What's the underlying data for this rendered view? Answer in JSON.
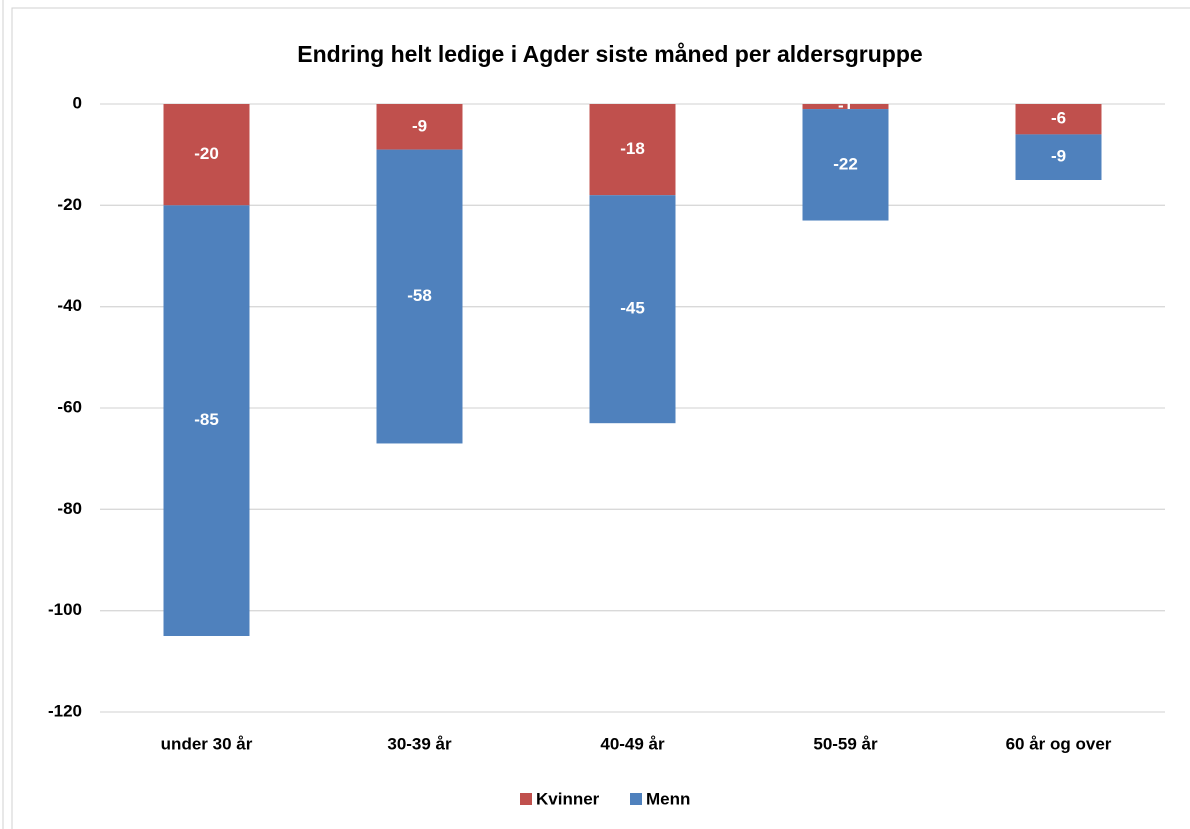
{
  "chart_data": {
    "type": "stacked_bar",
    "title": "Endring helt ledige i Agder siste måned per aldersgruppe",
    "categories": [
      "under 30 år",
      "30-39 år",
      "40-49 år",
      "50-59 år",
      "60 år og over"
    ],
    "series": [
      {
        "name": "Kvinner",
        "color": "#c0504d",
        "values": [
          -20,
          -9,
          -18,
          -1,
          -6
        ]
      },
      {
        "name": "Menn",
        "color": "#4f81bd",
        "values": [
          -85,
          -58,
          -45,
          -22,
          -9
        ]
      }
    ],
    "ylim": [
      -120,
      0
    ],
    "yticks": [
      -120,
      -100,
      -80,
      -60,
      -40,
      -20,
      0
    ],
    "grid": true,
    "legend": "bottom"
  }
}
